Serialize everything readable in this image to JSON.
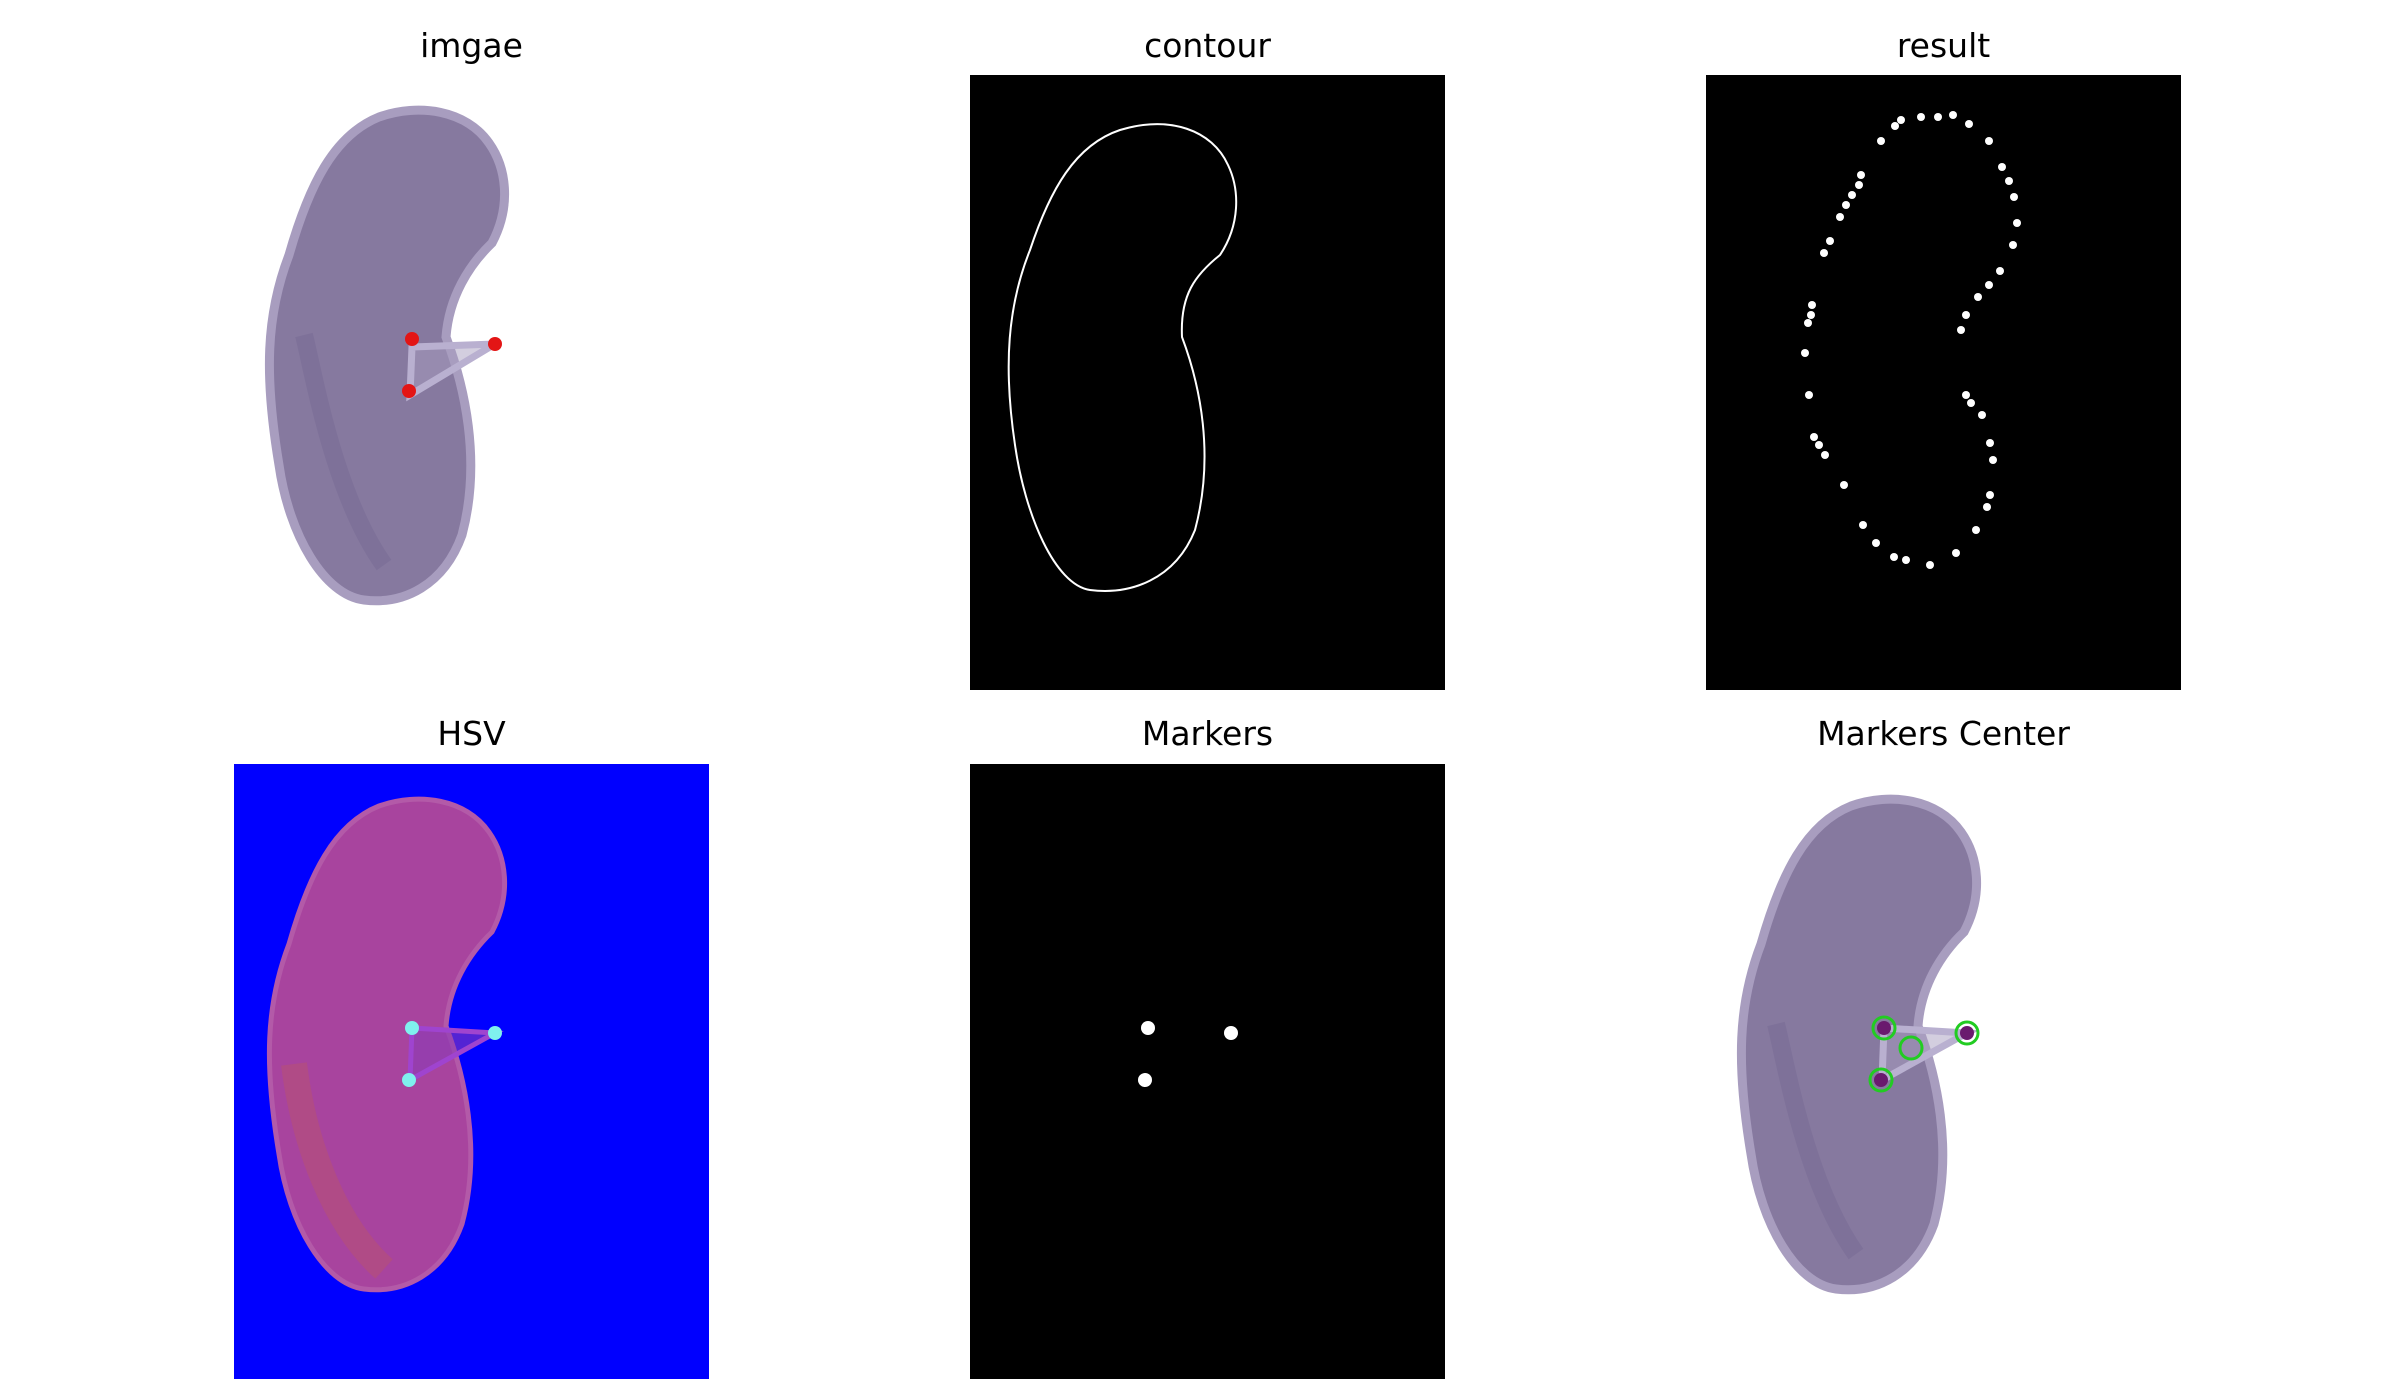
{
  "panels": [
    {
      "title": "imgae"
    },
    {
      "title": "contour"
    },
    {
      "title": "result"
    },
    {
      "title": "HSV"
    },
    {
      "title": "Markers"
    },
    {
      "title": "Markers Center"
    }
  ],
  "colors": {
    "kidney_fill": "#86799f",
    "kidney_edge": "#a89dbf",
    "kidney_shadow": "#6f6390",
    "marker_red": "#e31515",
    "hsv_background": "#0000ff",
    "hsv_kidney": "#a8449e",
    "hsv_marker": "#7ff0ee",
    "circle_green": "#22cc22",
    "mask_black": "#000000",
    "mask_white": "#ffffff"
  }
}
